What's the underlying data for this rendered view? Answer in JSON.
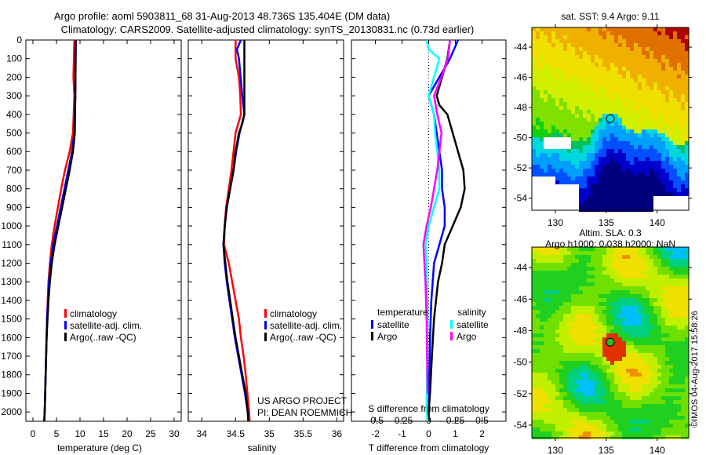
{
  "title_line1": "Argo profile: aoml 5903811_68 31-Aug-2013 48.736S 135.404E (DM data)",
  "title_line2": "Climatology: CARS2009. Satellite-adjusted climatology: synTS_20130831.nc (0.73d earlier)",
  "credit": "©IMOS 04-Aug-2017 15:58:26",
  "project_line1": "US ARGO PROJECT",
  "project_line2": "PI: DEAN ROEMMICH",
  "colors": {
    "climatology": "#ff0000",
    "satellite": "#0000ff",
    "argo": "#000000",
    "sal_satellite": "#00ffff",
    "sal_argo": "#ff00ff"
  },
  "chart_data": [
    {
      "type": "line",
      "xlabel": "temperature (deg C)",
      "ylabel": "depth",
      "xlim": [
        -1.5,
        31.5
      ],
      "ylim": [
        2050,
        0
      ],
      "xticks": [
        0,
        5,
        10,
        15,
        20,
        25,
        30
      ],
      "yticks": [
        0,
        100,
        200,
        300,
        400,
        500,
        600,
        700,
        800,
        900,
        1000,
        1100,
        1200,
        1300,
        1400,
        1500,
        1600,
        1700,
        1800,
        1900,
        2000
      ],
      "legend": [
        "climatology",
        "satellite-adj. clim.",
        "Argo(..raw -QC)"
      ],
      "series": [
        {
          "name": "climatology",
          "color": "#ff0000",
          "depth": [
            0,
            200,
            300,
            500,
            600,
            700,
            800,
            900,
            1000,
            1100,
            1200,
            1300,
            1500,
            1700,
            2000,
            2050
          ],
          "values": [
            8.8,
            8.6,
            8.8,
            8.5,
            7.8,
            6.8,
            6.0,
            5.3,
            4.6,
            4.0,
            3.6,
            3.3,
            3.0,
            2.8,
            2.5,
            2.4
          ]
        },
        {
          "name": "satellite-adj. clim.",
          "color": "#0000ff",
          "depth": [
            0,
            300,
            500,
            600,
            700,
            800,
            900,
            1000,
            1100,
            1200,
            1300,
            1500,
            2000,
            2050
          ],
          "values": [
            9.1,
            9.0,
            8.8,
            8.3,
            7.5,
            6.7,
            5.9,
            5.1,
            4.3,
            3.8,
            3.4,
            3.0,
            2.5,
            2.4
          ]
        },
        {
          "name": "Argo(..raw -QC)",
          "color": "#000000",
          "depth": [
            0,
            300,
            500,
            600,
            700,
            800,
            900,
            1000,
            1100,
            1200,
            1300,
            1400,
            1500,
            1600,
            1800,
            2000,
            2050
          ],
          "values": [
            9.1,
            9.0,
            8.9,
            8.5,
            7.8,
            7.0,
            6.2,
            5.4,
            4.6,
            4.0,
            3.6,
            3.3,
            3.1,
            2.9,
            2.7,
            2.5,
            2.4
          ]
        }
      ]
    },
    {
      "type": "line",
      "xlabel": "salinity",
      "xlim": [
        33.8,
        36.1
      ],
      "ylim": [
        2050,
        0
      ],
      "xticks": [
        34,
        34.5,
        35,
        35.5,
        36
      ],
      "legend": [
        "climatology",
        "satellite-adj. clim.",
        "Argo(..raw -QC)"
      ],
      "series": [
        {
          "name": "climatology",
          "color": "#ff0000",
          "depth": [
            0,
            100,
            200,
            300,
            400,
            500,
            600,
            700,
            800,
            900,
            1000,
            1100,
            1200,
            1300,
            1400,
            1500,
            1600,
            1700,
            1800,
            2000,
            2050
          ],
          "values": [
            34.5,
            34.5,
            34.55,
            34.57,
            34.58,
            34.5,
            34.47,
            34.44,
            34.4,
            34.36,
            34.34,
            34.33,
            34.4,
            34.45,
            34.5,
            34.55,
            34.58,
            34.62,
            34.65,
            34.7,
            34.71
          ]
        },
        {
          "name": "satellite-adj. clim.",
          "color": "#0000ff",
          "depth": [
            0,
            50,
            100,
            300,
            400,
            500,
            600,
            700,
            800,
            900,
            1000,
            1100,
            1200,
            1300,
            1400,
            1500,
            1600,
            1700,
            1800,
            1900,
            2000,
            2050
          ],
          "values": [
            34.58,
            34.52,
            34.55,
            34.6,
            34.63,
            34.56,
            34.51,
            34.47,
            34.42,
            34.37,
            34.34,
            34.32,
            34.34,
            34.37,
            34.41,
            34.45,
            34.49,
            34.54,
            34.59,
            34.64,
            34.68,
            34.69
          ]
        },
        {
          "name": "Argo(..raw -QC)",
          "color": "#000000",
          "depth": [
            0,
            400,
            450,
            500,
            600,
            700,
            800,
            900,
            1000,
            1100,
            1200,
            1300,
            1400,
            1500,
            1600,
            1700,
            1800,
            1900,
            2000,
            2050
          ],
          "values": [
            34.63,
            34.63,
            34.6,
            34.55,
            34.5,
            34.47,
            34.42,
            34.37,
            34.34,
            34.32,
            34.35,
            34.38,
            34.42,
            34.46,
            34.5,
            34.55,
            34.6,
            34.65,
            34.68,
            34.69
          ]
        }
      ]
    },
    {
      "type": "line",
      "xlabel": "T difference from climatology",
      "x2label": "S difference from climatology",
      "xlim": [
        -2.9,
        2.9
      ],
      "x2lim": [
        -0.725,
        0.725
      ],
      "ylim": [
        2050,
        0
      ],
      "xticks": [
        -2,
        -1,
        0,
        1,
        2
      ],
      "x2ticks": [
        "-0.5",
        "-0.25",
        "0",
        "0.25",
        "0.5"
      ],
      "legend_groups": [
        "temperature",
        "salinity"
      ],
      "legend": [
        "satellite",
        "Argo",
        "satellite",
        "Argo"
      ],
      "series": [
        {
          "name": "temperature satellite",
          "axis": "T",
          "color": "#0000ff",
          "depth": [
            0,
            100,
            200,
            300,
            400,
            500,
            600,
            700,
            800,
            900,
            1000,
            1100,
            1200,
            1400,
            1600,
            2000,
            2050
          ],
          "values": [
            1.1,
            0.8,
            0.4,
            0.0,
            0.2,
            0.3,
            0.4,
            0.5,
            0.5,
            0.6,
            0.6,
            0.4,
            0.2,
            0.1,
            0.05,
            0.0,
            0.0
          ]
        },
        {
          "name": "temperature Argo",
          "axis": "T",
          "color": "#000000",
          "depth": [
            0,
            100,
            200,
            300,
            350,
            400,
            500,
            600,
            700,
            800,
            900,
            1000,
            1100,
            1200,
            1300,
            1500,
            1700,
            1900,
            2000,
            2050
          ],
          "values": [
            0.8,
            0.7,
            0.5,
            0.3,
            0.4,
            0.7,
            0.9,
            1.1,
            1.3,
            1.35,
            1.2,
            0.9,
            0.6,
            0.5,
            0.35,
            0.2,
            0.12,
            0.05,
            0.0,
            0.0
          ]
        },
        {
          "name": "salinity satellite",
          "axis": "S",
          "color": "#00ffff",
          "depth": [
            0,
            50,
            100,
            200,
            300,
            400,
            500,
            600,
            700,
            800,
            900,
            1000,
            1100,
            1200,
            1500,
            2000,
            2050
          ],
          "values": [
            -0.02,
            0.0,
            0.1,
            0.05,
            0.0,
            0.05,
            0.06,
            0.08,
            0.1,
            0.1,
            0.05,
            0.0,
            -0.03,
            -0.02,
            -0.01,
            -0.02,
            -0.01
          ]
        },
        {
          "name": "salinity Argo",
          "axis": "S",
          "color": "#ff00ff",
          "depth": [
            0,
            100,
            200,
            300,
            400,
            500,
            600,
            700,
            800,
            900,
            1000,
            1100,
            1300,
            1500,
            1900
          ],
          "values": [
            0.2,
            0.18,
            0.12,
            0.05,
            0.08,
            0.12,
            0.1,
            0.08,
            0.05,
            0.02,
            -0.02,
            -0.05,
            -0.03,
            -0.02,
            -0.01
          ]
        }
      ]
    },
    {
      "type": "heatmap",
      "title": "sat. SST: 9.4 Argo: 9.11",
      "xlim": [
        127.7,
        143.1
      ],
      "ylim": [
        -54.8,
        -42.7
      ],
      "xticks": [
        130,
        135,
        140
      ],
      "yticks": [
        -44,
        -46,
        -48,
        -50,
        -52,
        -54
      ],
      "marker": {
        "lon": 135.404,
        "lat": -48.736
      }
    },
    {
      "type": "heatmap",
      "title": "Altim. SLA: 0.3",
      "subtitle": "Argo h1000: 0.038 h2000: NaN",
      "xlim": [
        127.7,
        143.1
      ],
      "ylim": [
        -54.8,
        -42.7
      ],
      "xticks": [
        130,
        135,
        140
      ],
      "yticks": [
        -44,
        -46,
        -48,
        -50,
        -52,
        -54
      ],
      "marker": {
        "lon": 135.404,
        "lat": -48.736
      }
    }
  ]
}
